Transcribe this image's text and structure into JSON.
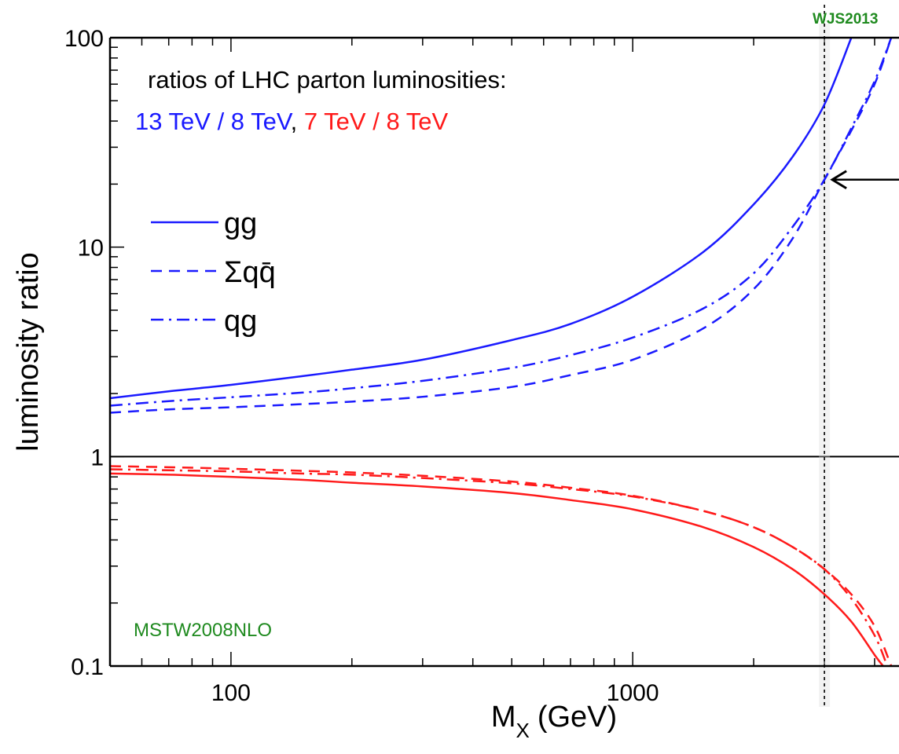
{
  "chart_data": {
    "type": "line",
    "title_line1": "ratios of LHC parton luminosities:",
    "title_parts": [
      {
        "text": "13 TeV / 8 TeV",
        "color": "#1a1aff"
      },
      {
        "text": ", ",
        "color": "#000000"
      },
      {
        "text": "7 TeV / 8 TeV",
        "color": "#ff1a1a"
      }
    ],
    "xlabel_main": "M",
    "xlabel_sub": "X",
    "xlabel_unit": "(GeV)",
    "ylabel": "luminosity ratio",
    "xscale": "log",
    "yscale": "log",
    "xlim": [
      50,
      4600
    ],
    "ylim": [
      0.1,
      100
    ],
    "x_ticks": [
      {
        "value": 100,
        "label": "100"
      },
      {
        "value": 1000,
        "label": "1000"
      }
    ],
    "y_ticks": [
      {
        "value": 0.1,
        "label": "0.1"
      },
      {
        "value": 1,
        "label": "1"
      },
      {
        "value": 10,
        "label": "10"
      },
      {
        "value": 100,
        "label": "100"
      }
    ],
    "reference_line_y": 1,
    "marker_x": 3000,
    "arrow_y": 21,
    "pdf_label": "MSTW2008NLO",
    "credit": "WJS2013",
    "legend": [
      {
        "label": "gg",
        "style": "solid"
      },
      {
        "label": "Σqq̄",
        "style": "dashed"
      },
      {
        "label": "qg",
        "style": "dashdot"
      }
    ],
    "series": [
      {
        "group": "13/8",
        "channel": "gg",
        "style": "solid",
        "color": "#1a1aff",
        "x": [
          50,
          70,
          100,
          150,
          200,
          300,
          500,
          700,
          1000,
          1500,
          2000,
          2500,
          3000,
          3500
        ],
        "y": [
          1.9,
          2.05,
          2.2,
          2.42,
          2.6,
          2.9,
          3.6,
          4.3,
          5.8,
          9.5,
          16,
          27,
          48,
          100
        ]
      },
      {
        "group": "13/8",
        "channel": "qqbar",
        "style": "dashed",
        "color": "#1a1aff",
        "x": [
          50,
          70,
          100,
          150,
          200,
          300,
          500,
          700,
          1000,
          1500,
          2000,
          2500,
          3000,
          3500,
          4000,
          4400
        ],
        "y": [
          1.62,
          1.68,
          1.72,
          1.78,
          1.83,
          1.93,
          2.15,
          2.45,
          2.9,
          4.1,
          6.3,
          11,
          21,
          36,
          60,
          100
        ]
      },
      {
        "group": "13/8",
        "channel": "qg",
        "style": "dashdot",
        "color": "#1a1aff",
        "x": [
          50,
          70,
          100,
          150,
          200,
          300,
          500,
          700,
          1000,
          1500,
          2000,
          2500,
          3000,
          3500,
          4000,
          4400
        ],
        "y": [
          1.75,
          1.84,
          1.92,
          2.02,
          2.12,
          2.3,
          2.65,
          3.05,
          3.7,
          5.1,
          7.5,
          12.5,
          21,
          37,
          62,
          100
        ]
      },
      {
        "group": "7/8",
        "channel": "gg",
        "style": "solid",
        "color": "#ff1a1a",
        "x": [
          50,
          70,
          100,
          150,
          200,
          300,
          500,
          700,
          1000,
          1500,
          2000,
          2500,
          3000,
          3500,
          4000,
          4200
        ],
        "y": [
          0.83,
          0.82,
          0.8,
          0.775,
          0.75,
          0.72,
          0.67,
          0.62,
          0.56,
          0.46,
          0.37,
          0.29,
          0.22,
          0.163,
          0.113,
          0.1
        ]
      },
      {
        "group": "7/8",
        "channel": "qqbar",
        "style": "dashed",
        "color": "#ff1a1a",
        "x": [
          50,
          70,
          100,
          150,
          200,
          300,
          500,
          700,
          1000,
          1500,
          2000,
          2500,
          3000,
          3500,
          4000,
          4400
        ],
        "y": [
          0.9,
          0.89,
          0.875,
          0.855,
          0.84,
          0.81,
          0.76,
          0.71,
          0.65,
          0.55,
          0.46,
          0.37,
          0.29,
          0.22,
          0.155,
          0.1
        ]
      },
      {
        "group": "7/8",
        "channel": "qg",
        "style": "dashdot",
        "color": "#ff1a1a",
        "x": [
          50,
          70,
          100,
          150,
          200,
          300,
          500,
          700,
          1000,
          1500,
          2000,
          2500,
          3000,
          3500,
          4000,
          4300
        ],
        "y": [
          0.87,
          0.86,
          0.85,
          0.83,
          0.82,
          0.79,
          0.745,
          0.7,
          0.645,
          0.55,
          0.46,
          0.37,
          0.29,
          0.21,
          0.14,
          0.1
        ]
      }
    ]
  }
}
